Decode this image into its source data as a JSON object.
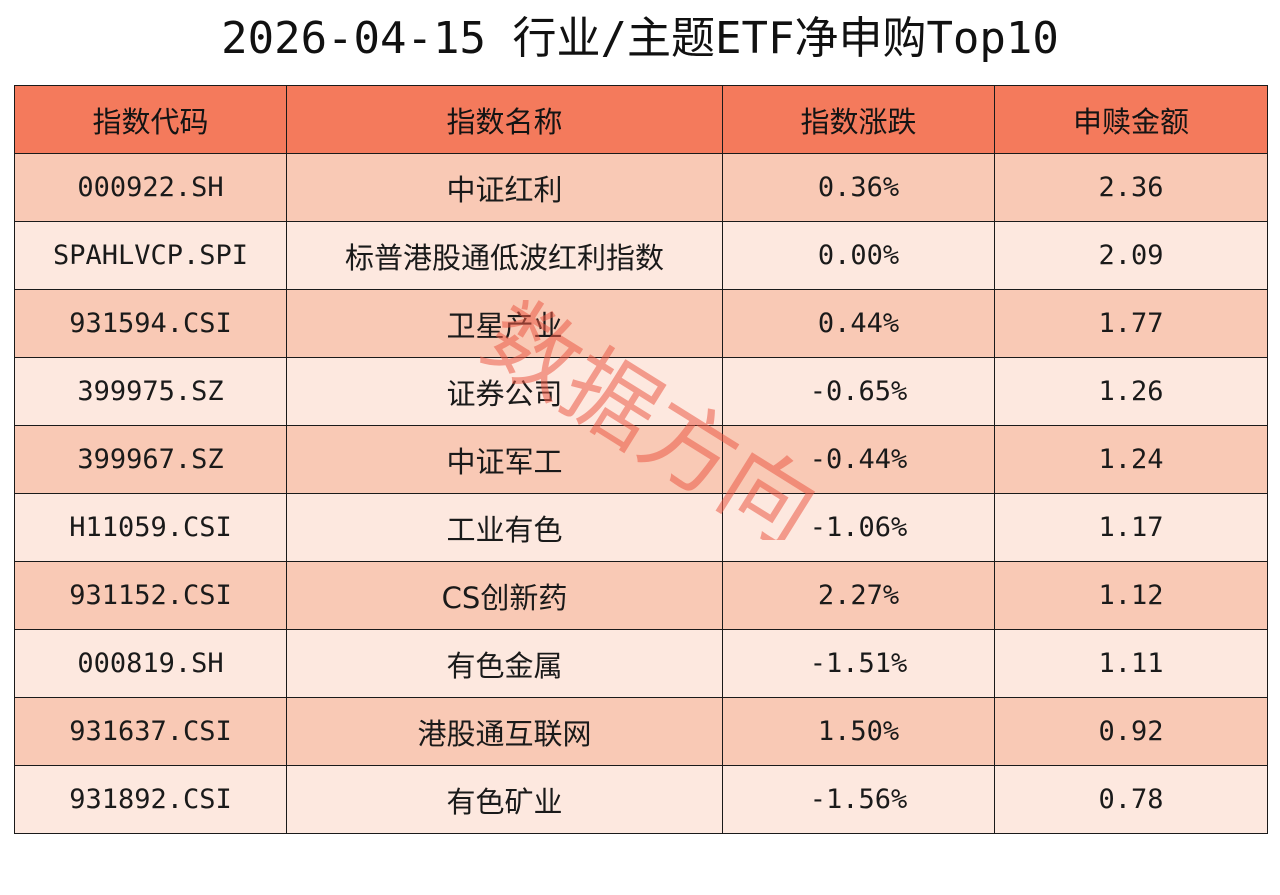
{
  "colors": {
    "header_bg": "#f47a5c",
    "row_odd_bg": "#f9c9b5",
    "row_even_bg": "#fde8df",
    "border": "#1a1a1a",
    "watermark": "#eb5a46"
  },
  "title": "2026-04-15 行业/主题ETF净申购Top10",
  "watermark_text": "数据方向",
  "chart_data": {
    "type": "table",
    "title": "2026-04-15 行业/主题ETF净申购Top10",
    "columns": [
      "指数代码",
      "指数名称",
      "指数涨跌",
      "申赎金额"
    ],
    "rows": [
      [
        "000922.SH",
        "中证红利",
        "0.36%",
        "2.36"
      ],
      [
        "SPAHLVCP.SPI",
        "标普港股通低波红利指数",
        "0.00%",
        "2.09"
      ],
      [
        "931594.CSI",
        "卫星产业",
        "0.44%",
        "1.77"
      ],
      [
        "399975.SZ",
        "证券公司",
        "-0.65%",
        "1.26"
      ],
      [
        "399967.SZ",
        "中证军工",
        "-0.44%",
        "1.24"
      ],
      [
        "H11059.CSI",
        "工业有色",
        "-1.06%",
        "1.17"
      ],
      [
        "931152.CSI",
        "CS创新药",
        "2.27%",
        "1.12"
      ],
      [
        "000819.SH",
        "有色金属",
        "-1.51%",
        "1.11"
      ],
      [
        "931637.CSI",
        "港股通互联网",
        "1.50%",
        "0.92"
      ],
      [
        "931892.CSI",
        "有色矿业",
        "-1.56%",
        "0.78"
      ]
    ]
  }
}
